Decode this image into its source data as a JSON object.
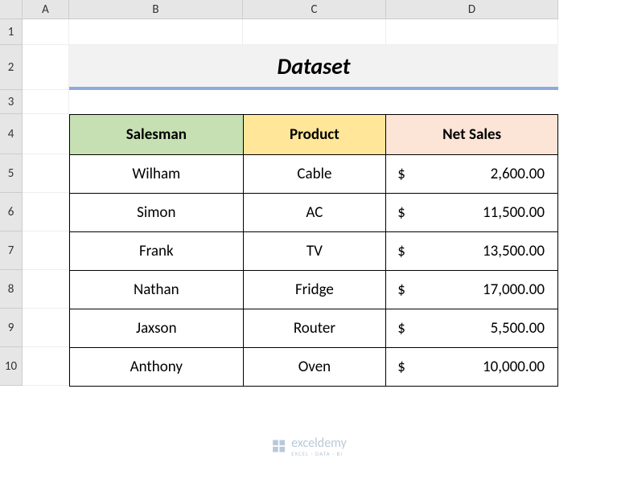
{
  "columns": [
    "A",
    "B",
    "C",
    "D"
  ],
  "rows_nums": [
    "1",
    "2",
    "3",
    "4",
    "5",
    "6",
    "7",
    "8",
    "9",
    "10"
  ],
  "title": "Dataset",
  "headers": {
    "salesman": "Salesman",
    "product": "Product",
    "netsales": "Net Sales"
  },
  "data": [
    {
      "salesman": "Wilham",
      "product": "Cable",
      "amount": "2,600.00"
    },
    {
      "salesman": "Simon",
      "product": "AC",
      "amount": "11,500.00"
    },
    {
      "salesman": "Frank",
      "product": "TV",
      "amount": "13,500.00"
    },
    {
      "salesman": "Nathan",
      "product": "Fridge",
      "amount": "17,000.00"
    },
    {
      "salesman": "Jaxson",
      "product": "Router",
      "amount": "5,500.00"
    },
    {
      "salesman": "Anthony",
      "product": "Oven",
      "amount": "10,000.00"
    }
  ],
  "currency_symbol": "$",
  "watermark": {
    "name": "exceldemy",
    "sub": "EXCEL · DATA · BI"
  },
  "colors": {
    "header_salesman": "#c6e0b4",
    "header_product": "#ffe699",
    "header_netsales": "#fce4d6",
    "title_bg": "#f2f2f2",
    "title_border": "#8ea9db",
    "grid_header_bg": "#e6e6e6"
  }
}
